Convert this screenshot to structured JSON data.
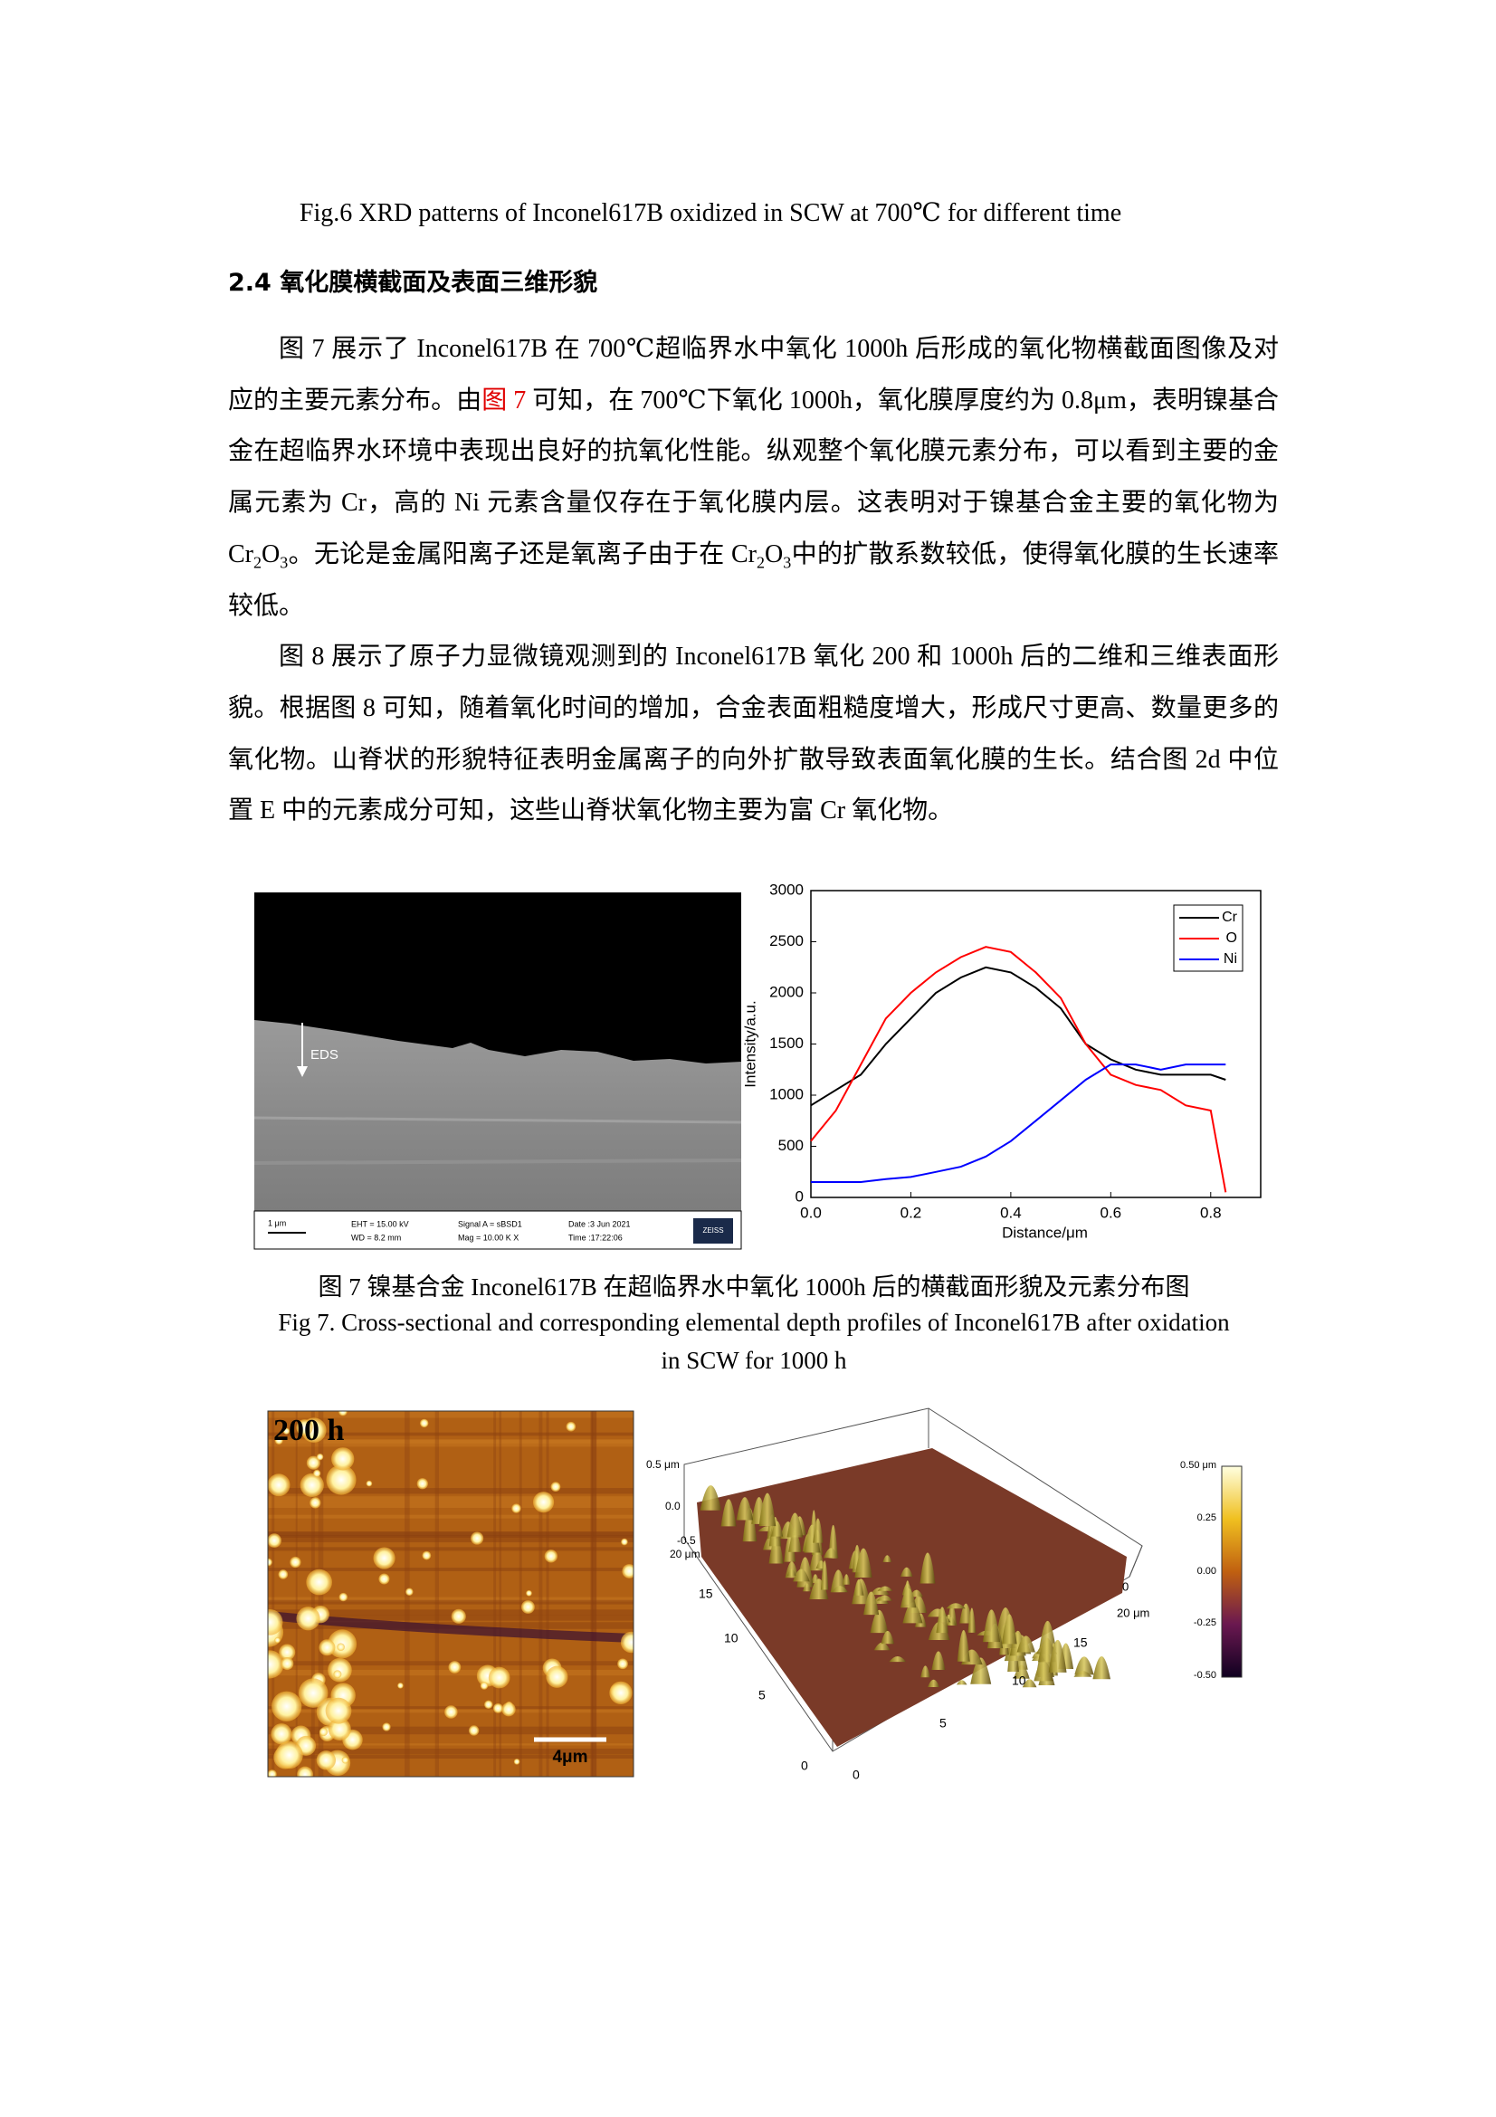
{
  "fig6_caption": "Fig.6 XRD patterns of Inconel617B oxidized in SCW at 700℃ for different time",
  "section_heading": "2.4  氧化膜横截面及表面三维形貌",
  "paragraphs": [
    [
      "图 7 展示了 Inconel617B 在 700℃超临界水中氧化 1000h 后形成的氧化物横截面图像及对应的主要元素分布。由",
      "图 7",
      " 可知，在 700℃下氧化 1000h，氧化膜厚度约为 0.8μm，表明镍基合金在超临界水环境中表现出良好的抗氧化性能。纵观整个氧化膜元素分布，可以看到主要的金属元素为 Cr，高的 Ni 元素含量仅存在于氧化膜内层。这表明对于镍基合金主要的氧化物为 Cr",
      "2",
      "O",
      "3",
      "。无论是金属阳离子还是氧离子由于在 Cr",
      "2",
      "O",
      "3",
      "中的扩散系数较低，使得氧化膜的生长速率较低。"
    ],
    [
      "图 8 展示了原子力显微镜观测到的 Inconel617B 氧化 200 和 1000h 后的二维和三维表面形貌。根据图 8 可知，随着氧化时间的增加，合金表面粗糙度增大，形成尺寸更高、数量更多的氧化物。山脊状的形貌特征表明金属离子的向外扩散导致表面氧化膜的生长。结合图 2d 中位置 E 中的元素成分可知，这些山脊状氧化物主要为富 Cr 氧化物。"
    ]
  ],
  "sem_image": {
    "marker": "EDS",
    "scale_bar": "1 μm",
    "info": [
      "EHT = 15.00 kV",
      "WD = 8.2 mm",
      "Signal A = sBSD1",
      "Mag = 10.00 K X",
      "Date :3 Jun 2021",
      "Time :17:22:06"
    ],
    "logo": "ZEISS"
  },
  "chart_data": {
    "type": "line",
    "x_label": "Distance/μm",
    "y_label": "Intensity/a.u.",
    "x": [
      0,
      0.05,
      0.1,
      0.15,
      0.2,
      0.25,
      0.3,
      0.35,
      0.4,
      0.45,
      0.5,
      0.55,
      0.6,
      0.65,
      0.7,
      0.75,
      0.8,
      0.83
    ],
    "series": [
      {
        "name": "Cr",
        "color": "#000000",
        "values": [
          900,
          1050,
          1200,
          1500,
          1750,
          2000,
          2150,
          2250,
          2200,
          2050,
          1850,
          1500,
          1350,
          1250,
          1200,
          1200,
          1200,
          1150
        ]
      },
      {
        "name": "O",
        "color": "#ff0000",
        "values": [
          550,
          850,
          1300,
          1750,
          2000,
          2200,
          2350,
          2450,
          2400,
          2200,
          1950,
          1500,
          1200,
          1100,
          1050,
          900,
          850,
          50
        ]
      },
      {
        "name": "Ni",
        "color": "#0000ff",
        "values": [
          150,
          150,
          150,
          180,
          200,
          250,
          300,
          400,
          550,
          750,
          950,
          1150,
          1300,
          1300,
          1250,
          1300,
          1300,
          1300
        ]
      }
    ],
    "xlim": [
      0,
      0.9
    ],
    "ylim": [
      0,
      3000
    ],
    "xticks": [
      {
        "value": 0,
        "label": "0.0"
      },
      0.2,
      0.4,
      0.6,
      0.8
    ],
    "yticks": [
      0,
      500,
      1000,
      1500,
      2000,
      2500,
      3000
    ],
    "legend": "upper right"
  },
  "fig7_caption_cn": "图 7  镍基合金 Inconel617B 在超临界水中氧化 1000h 后的横截面形貌及元素分布图",
  "fig7_caption_en": [
    "Fig 7. Cross-sectional and corresponding elemental depth profiles of Inconel617B after oxidation",
    "in SCW for 1000 h"
  ],
  "afm": {
    "label": "200 h",
    "scale_bar": "4μm",
    "z_axis": [
      "0.5 μm",
      "0.0",
      "-0.5"
    ],
    "left_axis": [
      "20 μm",
      "15",
      "10",
      "5",
      "0"
    ],
    "right_axis": [
      "0",
      "20 μm",
      "15",
      "10",
      "5",
      "0"
    ],
    "colorbar": [
      "0.50 μm",
      "0.25",
      "0.00",
      "-0.25",
      "-0.50"
    ]
  }
}
